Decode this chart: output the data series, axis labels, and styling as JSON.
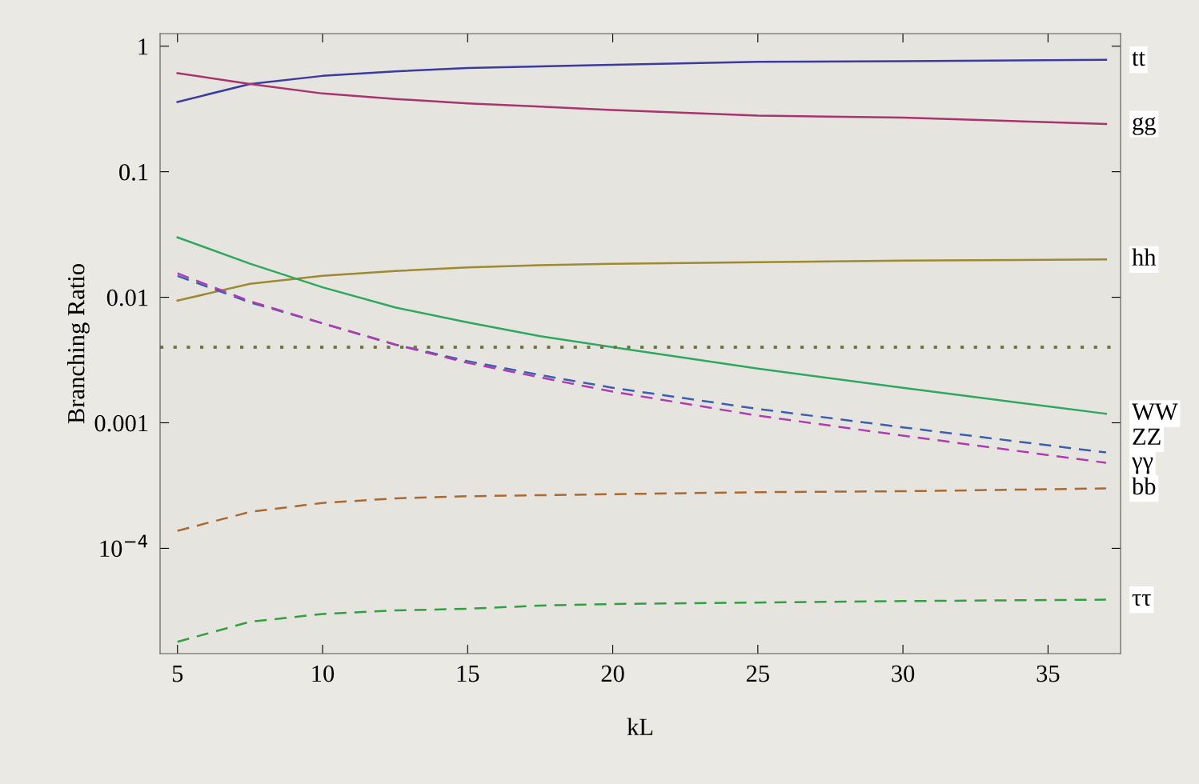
{
  "chart_data": {
    "type": "line",
    "xlabel": "kL",
    "ylabel": "Branching Ratio",
    "log": "y",
    "grid": false,
    "legend": false,
    "x": [
      5,
      7.5,
      10,
      12.5,
      15,
      17.5,
      20,
      25,
      30,
      37
    ],
    "xlim": [
      4.4,
      37.5
    ],
    "xticks": [
      5,
      10,
      15,
      20,
      25,
      30,
      35
    ],
    "ylim": [
      1.45e-05,
      1.26
    ],
    "yticks": [
      {
        "value": 1,
        "label": "1"
      },
      {
        "value": 0.1,
        "label": "0.1"
      },
      {
        "value": 0.01,
        "label": "0.01"
      },
      {
        "value": 0.001,
        "label": "0.001"
      },
      {
        "value": 0.0001,
        "label": "10$^{−4}$"
      }
    ],
    "series": [
      {
        "name": "tt",
        "color": "#3a3aa0",
        "line_style": "solid",
        "values": [
          0.36,
          0.5,
          0.58,
          0.63,
          0.67,
          0.69,
          0.71,
          0.75,
          0.76,
          0.78
        ]
      },
      {
        "name": "gg",
        "color": "#a8336e",
        "line_style": "solid",
        "values": [
          0.61,
          0.5,
          0.42,
          0.38,
          0.35,
          0.33,
          0.31,
          0.28,
          0.27,
          0.24
        ]
      },
      {
        "name": "hh",
        "color": "#9e8a30",
        "line_style": "solid",
        "values": [
          0.0094,
          0.0128,
          0.0148,
          0.0162,
          0.0173,
          0.018,
          0.0185,
          0.019,
          0.0196,
          0.02
        ]
      },
      {
        "name": "WW",
        "color": "#2ea860",
        "line_style": "solid",
        "values": [
          0.03,
          0.0185,
          0.012,
          0.0083,
          0.0063,
          0.0049,
          0.004,
          0.0027,
          0.0019,
          0.00118
        ]
      },
      {
        "name": "ZZ",
        "color": "#3b5fb0",
        "line_style": "dashed",
        "values": [
          0.0148,
          0.0091,
          0.0062,
          0.0042,
          0.0031,
          0.0024,
          0.0019,
          0.00129,
          0.00092,
          0.00058
        ]
      },
      {
        "name": "γγ",
        "color": "#b03cb0",
        "line_style": "dashed",
        "values": [
          0.0155,
          0.0093,
          0.0062,
          0.0042,
          0.003,
          0.0023,
          0.00177,
          0.00114,
          0.00079,
          0.00048
        ]
      },
      {
        "name": "bb",
        "color": "#a86a30",
        "line_style": "dashed",
        "values": [
          0.000138,
          0.000195,
          0.00023,
          0.00025,
          0.00026,
          0.000265,
          0.00027,
          0.00028,
          0.000285,
          0.0003
        ]
      },
      {
        "name": "ττ",
        "color": "#30a040",
        "line_style": "dashed",
        "values": [
          1.8e-05,
          2.6e-05,
          3e-05,
          3.2e-05,
          3.3e-05,
          3.5e-05,
          3.6e-05,
          3.7e-05,
          3.8e-05,
          3.9e-05
        ]
      }
    ],
    "ref_lines": [
      {
        "axis": "y",
        "value": 0.004,
        "color": "#6b7a40",
        "line_style": "dotted"
      }
    ]
  }
}
